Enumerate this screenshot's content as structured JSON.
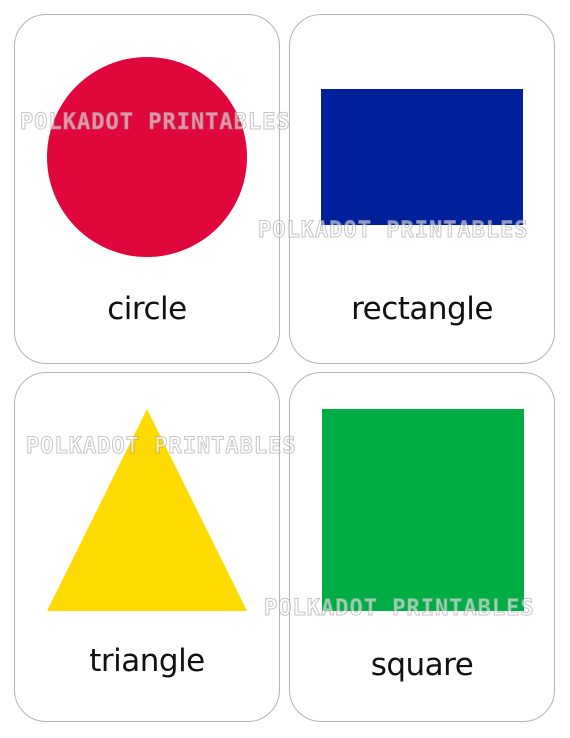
{
  "cards": [
    {
      "label": "circle",
      "shape": "circle",
      "color": "#E0073C"
    },
    {
      "label": "rectangle",
      "shape": "rectangle",
      "color": "#00209B"
    },
    {
      "label": "triangle",
      "shape": "triangle",
      "color": "#FDDB00"
    },
    {
      "label": "square",
      "shape": "square",
      "color": "#00AD45"
    }
  ],
  "watermark": "POLKADOT PRINTABLES"
}
